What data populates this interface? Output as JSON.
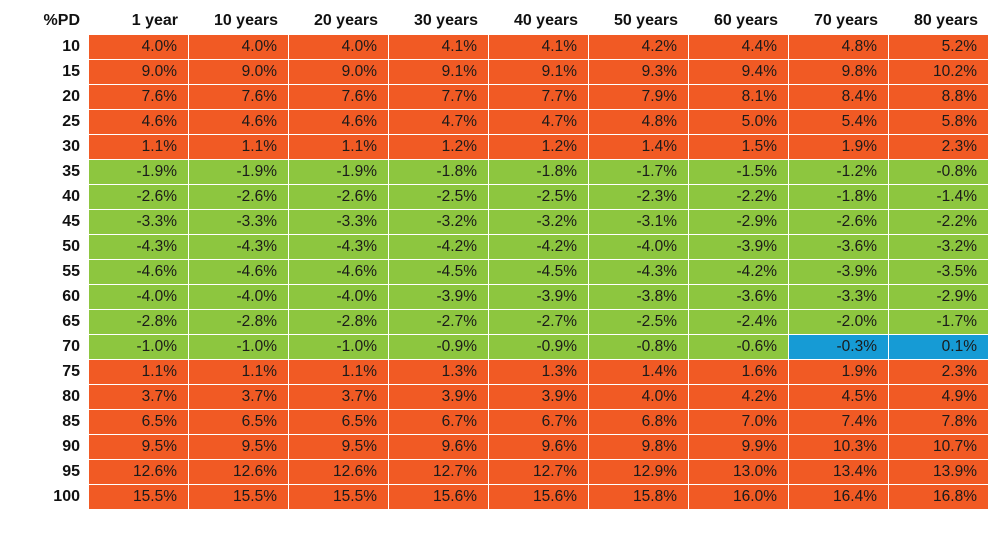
{
  "chart_data": {
    "type": "table",
    "corner_label": "%PD",
    "columns": [
      "1 year",
      "10 years",
      "20 years",
      "30 years",
      "40 years",
      "50 years",
      "60 years",
      "70 years",
      "80 years"
    ],
    "rows": [
      "10",
      "15",
      "20",
      "25",
      "30",
      "35",
      "40",
      "45",
      "50",
      "55",
      "60",
      "65",
      "70",
      "75",
      "80",
      "85",
      "90",
      "95",
      "100"
    ],
    "values": [
      [
        "4.0%",
        "4.0%",
        "4.0%",
        "4.1%",
        "4.1%",
        "4.2%",
        "4.4%",
        "4.8%",
        "5.2%"
      ],
      [
        "9.0%",
        "9.0%",
        "9.0%",
        "9.1%",
        "9.1%",
        "9.3%",
        "9.4%",
        "9.8%",
        "10.2%"
      ],
      [
        "7.6%",
        "7.6%",
        "7.6%",
        "7.7%",
        "7.7%",
        "7.9%",
        "8.1%",
        "8.4%",
        "8.8%"
      ],
      [
        "4.6%",
        "4.6%",
        "4.6%",
        "4.7%",
        "4.7%",
        "4.8%",
        "5.0%",
        "5.4%",
        "5.8%"
      ],
      [
        "1.1%",
        "1.1%",
        "1.1%",
        "1.2%",
        "1.2%",
        "1.4%",
        "1.5%",
        "1.9%",
        "2.3%"
      ],
      [
        "-1.9%",
        "-1.9%",
        "-1.9%",
        "-1.8%",
        "-1.8%",
        "-1.7%",
        "-1.5%",
        "-1.2%",
        "-0.8%"
      ],
      [
        "-2.6%",
        "-2.6%",
        "-2.6%",
        "-2.5%",
        "-2.5%",
        "-2.3%",
        "-2.2%",
        "-1.8%",
        "-1.4%"
      ],
      [
        "-3.3%",
        "-3.3%",
        "-3.3%",
        "-3.2%",
        "-3.2%",
        "-3.1%",
        "-2.9%",
        "-2.6%",
        "-2.2%"
      ],
      [
        "-4.3%",
        "-4.3%",
        "-4.3%",
        "-4.2%",
        "-4.2%",
        "-4.0%",
        "-3.9%",
        "-3.6%",
        "-3.2%"
      ],
      [
        "-4.6%",
        "-4.6%",
        "-4.6%",
        "-4.5%",
        "-4.5%",
        "-4.3%",
        "-4.2%",
        "-3.9%",
        "-3.5%"
      ],
      [
        "-4.0%",
        "-4.0%",
        "-4.0%",
        "-3.9%",
        "-3.9%",
        "-3.8%",
        "-3.6%",
        "-3.3%",
        "-2.9%"
      ],
      [
        "-2.8%",
        "-2.8%",
        "-2.8%",
        "-2.7%",
        "-2.7%",
        "-2.5%",
        "-2.4%",
        "-2.0%",
        "-1.7%"
      ],
      [
        "-1.0%",
        "-1.0%",
        "-1.0%",
        "-0.9%",
        "-0.9%",
        "-0.8%",
        "-0.6%",
        "-0.3%",
        "0.1%"
      ],
      [
        "1.1%",
        "1.1%",
        "1.1%",
        "1.3%",
        "1.3%",
        "1.4%",
        "1.6%",
        "1.9%",
        "2.3%"
      ],
      [
        "3.7%",
        "3.7%",
        "3.7%",
        "3.9%",
        "3.9%",
        "4.0%",
        "4.2%",
        "4.5%",
        "4.9%"
      ],
      [
        "6.5%",
        "6.5%",
        "6.5%",
        "6.7%",
        "6.7%",
        "6.8%",
        "7.0%",
        "7.4%",
        "7.8%"
      ],
      [
        "9.5%",
        "9.5%",
        "9.5%",
        "9.6%",
        "9.6%",
        "9.8%",
        "9.9%",
        "10.3%",
        "10.7%"
      ],
      [
        "12.6%",
        "12.6%",
        "12.6%",
        "12.7%",
        "12.7%",
        "12.9%",
        "13.0%",
        "13.4%",
        "13.9%"
      ],
      [
        "15.5%",
        "15.5%",
        "15.5%",
        "15.6%",
        "15.6%",
        "15.8%",
        "16.0%",
        "16.4%",
        "16.8%"
      ]
    ],
    "cell_colors": [
      [
        "o",
        "o",
        "o",
        "o",
        "o",
        "o",
        "o",
        "o",
        "o"
      ],
      [
        "o",
        "o",
        "o",
        "o",
        "o",
        "o",
        "o",
        "o",
        "o"
      ],
      [
        "o",
        "o",
        "o",
        "o",
        "o",
        "o",
        "o",
        "o",
        "o"
      ],
      [
        "o",
        "o",
        "o",
        "o",
        "o",
        "o",
        "o",
        "o",
        "o"
      ],
      [
        "o",
        "o",
        "o",
        "o",
        "o",
        "o",
        "o",
        "o",
        "o"
      ],
      [
        "g",
        "g",
        "g",
        "g",
        "g",
        "g",
        "g",
        "g",
        "g"
      ],
      [
        "g",
        "g",
        "g",
        "g",
        "g",
        "g",
        "g",
        "g",
        "g"
      ],
      [
        "g",
        "g",
        "g",
        "g",
        "g",
        "g",
        "g",
        "g",
        "g"
      ],
      [
        "g",
        "g",
        "g",
        "g",
        "g",
        "g",
        "g",
        "g",
        "g"
      ],
      [
        "g",
        "g",
        "g",
        "g",
        "g",
        "g",
        "g",
        "g",
        "g"
      ],
      [
        "g",
        "g",
        "g",
        "g",
        "g",
        "g",
        "g",
        "g",
        "g"
      ],
      [
        "g",
        "g",
        "g",
        "g",
        "g",
        "g",
        "g",
        "g",
        "g"
      ],
      [
        "g",
        "g",
        "g",
        "g",
        "g",
        "g",
        "g",
        "b",
        "b"
      ],
      [
        "o",
        "o",
        "o",
        "o",
        "o",
        "o",
        "o",
        "o",
        "o"
      ],
      [
        "o",
        "o",
        "o",
        "o",
        "o",
        "o",
        "o",
        "o",
        "o"
      ],
      [
        "o",
        "o",
        "o",
        "o",
        "o",
        "o",
        "o",
        "o",
        "o"
      ],
      [
        "o",
        "o",
        "o",
        "o",
        "o",
        "o",
        "o",
        "o",
        "o"
      ],
      [
        "o",
        "o",
        "o",
        "o",
        "o",
        "o",
        "o",
        "o",
        "o"
      ],
      [
        "o",
        "o",
        "o",
        "o",
        "o",
        "o",
        "o",
        "o",
        "o"
      ]
    ],
    "palette": {
      "o": "#F15A24",
      "g": "#8DC63F",
      "b": "#169BD5"
    }
  }
}
